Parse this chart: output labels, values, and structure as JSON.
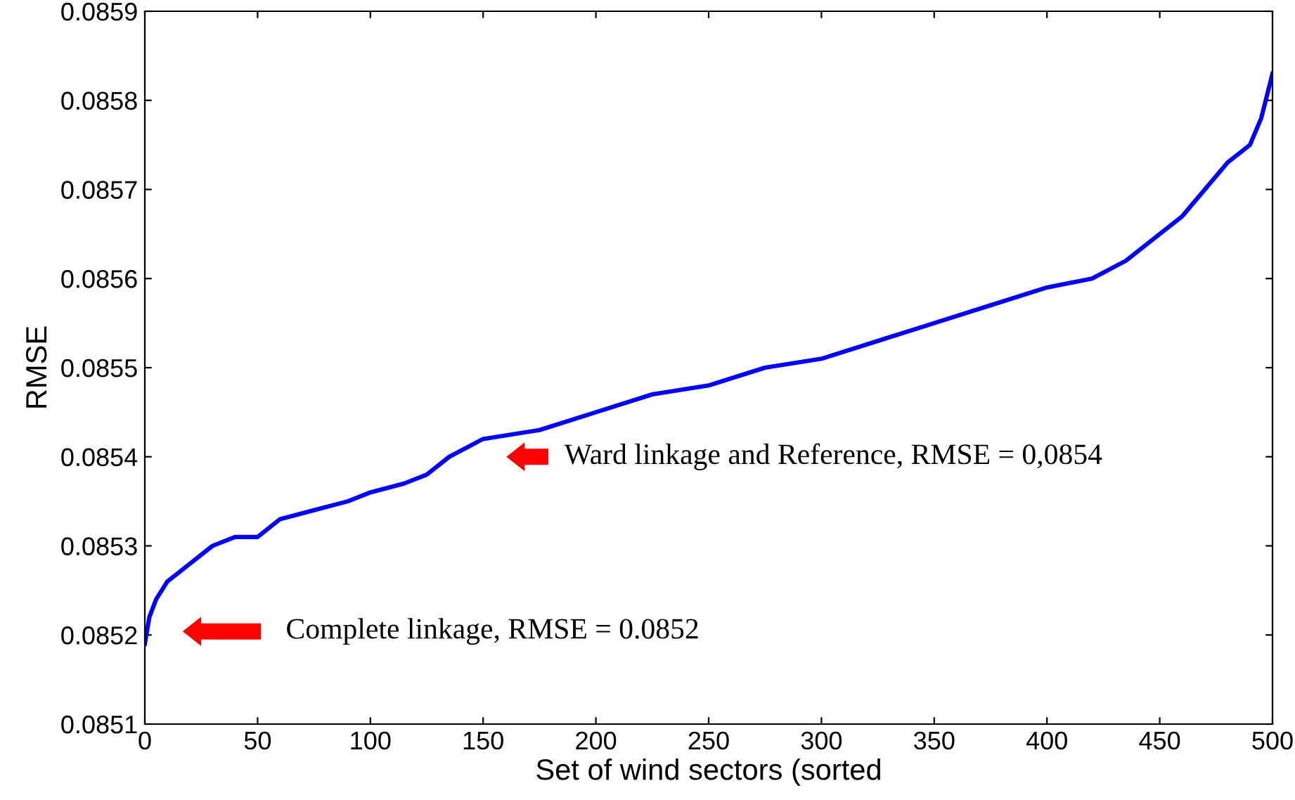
{
  "chart_data": {
    "type": "line",
    "xlabel": "Set of wind sectors (sorted",
    "ylabel": "RMSE",
    "x": [
      0,
      2,
      5,
      10,
      15,
      20,
      30,
      40,
      50,
      60,
      75,
      90,
      100,
      115,
      125,
      135,
      150,
      175,
      200,
      225,
      250,
      275,
      300,
      325,
      350,
      375,
      400,
      420,
      435,
      450,
      460,
      470,
      480,
      490,
      495,
      500
    ],
    "series": [
      {
        "color": "#0000ff",
        "values": [
          0.08519,
          0.08522,
          0.08524,
          0.08526,
          0.08527,
          0.08528,
          0.0853,
          0.08531,
          0.08531,
          0.08533,
          0.08534,
          0.08535,
          0.08536,
          0.08537,
          0.08538,
          0.0854,
          0.08542,
          0.08543,
          0.08545,
          0.08547,
          0.08548,
          0.0855,
          0.08551,
          0.08553,
          0.08555,
          0.08557,
          0.08559,
          0.0856,
          0.08562,
          0.08565,
          0.08567,
          0.0857,
          0.08573,
          0.08575,
          0.08578,
          0.08583
        ]
      }
    ],
    "xlim": [
      0,
      500
    ],
    "xticks": [
      0,
      50,
      100,
      150,
      200,
      250,
      300,
      350,
      400,
      450,
      500
    ],
    "ylim": [
      0.0851,
      0.0859
    ],
    "yticks": [
      {
        "value": 0.0851,
        "label": "0.0851"
      },
      {
        "value": 0.0852,
        "label": "0.0852"
      },
      {
        "value": 0.0853,
        "label": "0.0853"
      },
      {
        "value": 0.0854,
        "label": "0.0854"
      },
      {
        "value": 0.0855,
        "label": "0.0855"
      },
      {
        "value": 0.0856,
        "label": "0.0856"
      },
      {
        "value": 0.0857,
        "label": "0.0857"
      },
      {
        "value": 0.0858,
        "label": "0.0858"
      },
      {
        "value": 0.0859,
        "label": "0.0859"
      }
    ],
    "grid": false,
    "marker": "none",
    "line_style": "solid",
    "annotations": [
      "Ward linkage and Reference, RMSE = 0,0854",
      "Complete linkage, RMSE = 0.0852"
    ]
  }
}
